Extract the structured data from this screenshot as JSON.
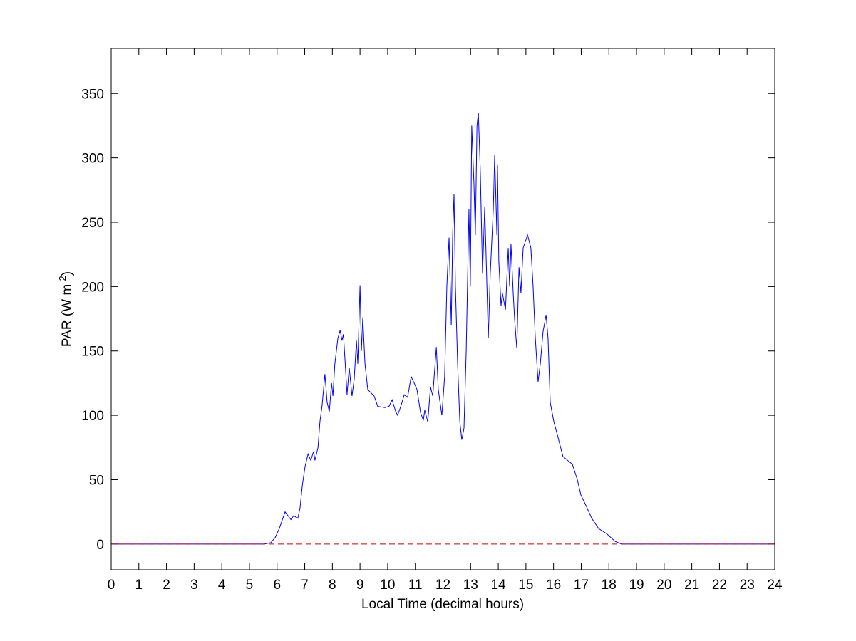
{
  "chart_data": {
    "type": "line",
    "xlabel": "Local Time (decimal hours)",
    "ylabel": {
      "text": "PAR (W m",
      "superscript": "-2",
      "suffix": ")"
    },
    "xlim": [
      0,
      24
    ],
    "ylim": [
      -20,
      385
    ],
    "xticks": [
      0,
      1,
      2,
      3,
      4,
      5,
      6,
      7,
      8,
      9,
      10,
      11,
      12,
      13,
      14,
      15,
      16,
      17,
      18,
      19,
      20,
      21,
      22,
      23,
      24
    ],
    "yticks": [
      0,
      50,
      100,
      150,
      200,
      250,
      300,
      350
    ],
    "grid": false,
    "box": true,
    "series": [
      {
        "color": "#0000ff",
        "dashed": false,
        "x": [
          0,
          5.52,
          5.77,
          5.93,
          6.08,
          6.29,
          6.5,
          6.6,
          6.75,
          6.83,
          6.91,
          7.01,
          7.12,
          7.22,
          7.32,
          7.37,
          7.48,
          7.55,
          7.63,
          7.73,
          7.81,
          7.89,
          7.97,
          8.02,
          8.09,
          8.2,
          8.28,
          8.35,
          8.4,
          8.48,
          8.53,
          8.61,
          8.71,
          8.79,
          8.87,
          8.92,
          9.0,
          9.05,
          9.1,
          9.18,
          9.28,
          9.51,
          9.64,
          9.9,
          10.05,
          10.16,
          10.29,
          10.36,
          10.49,
          10.6,
          10.72,
          10.85,
          10.96,
          11.06,
          11.19,
          11.29,
          11.34,
          11.45,
          11.55,
          11.63,
          11.76,
          11.83,
          11.96,
          12.06,
          12.14,
          12.22,
          12.3,
          12.35,
          12.4,
          12.45,
          12.53,
          12.61,
          12.68,
          12.76,
          12.84,
          12.94,
          12.99,
          13.04,
          13.12,
          13.17,
          13.23,
          13.28,
          13.35,
          13.43,
          13.51,
          13.59,
          13.64,
          13.71,
          13.82,
          13.87,
          13.95,
          13.97,
          14.02,
          14.1,
          14.15,
          14.26,
          14.36,
          14.41,
          14.46,
          14.54,
          14.59,
          14.67,
          14.75,
          14.82,
          14.9,
          15.06,
          15.18,
          15.26,
          15.34,
          15.44,
          15.52,
          15.62,
          15.73,
          15.8,
          15.88,
          16.01,
          16.16,
          16.34,
          16.68,
          16.86,
          16.99,
          17.17,
          17.38,
          17.63,
          17.92,
          18.23,
          18.46,
          24
        ],
        "values": [
          0,
          0,
          1,
          5,
          12,
          25,
          19,
          22,
          20,
          28,
          45,
          60,
          70,
          65,
          72,
          65,
          75,
          95,
          108,
          132,
          110,
          103,
          125,
          115,
          140,
          160,
          166,
          158,
          163,
          135,
          116,
          137,
          115,
          128,
          158,
          140,
          201,
          150,
          176,
          140,
          120,
          115,
          107,
          106,
          107,
          112,
          103,
          100,
          108,
          116,
          114,
          130,
          125,
          120,
          102,
          96,
          104,
          95,
          122,
          115,
          153,
          120,
          100,
          130,
          200,
          238,
          170,
          240,
          272,
          200,
          140,
          95,
          81,
          90,
          150,
          260,
          200,
          325,
          280,
          240,
          325,
          335,
          290,
          210,
          262,
          200,
          160,
          210,
          260,
          302,
          240,
          295,
          220,
          185,
          195,
          182,
          230,
          200,
          233,
          195,
          175,
          152,
          215,
          195,
          230,
          240,
          230,
          200,
          160,
          126,
          140,
          165,
          178,
          160,
          110,
          95,
          83,
          68,
          62,
          50,
          38,
          30,
          20,
          12,
          8,
          2,
          0,
          0
        ]
      },
      {
        "color": "#cc0000",
        "dashed": true,
        "x": [
          0,
          24
        ],
        "values": [
          0,
          0
        ]
      }
    ]
  }
}
